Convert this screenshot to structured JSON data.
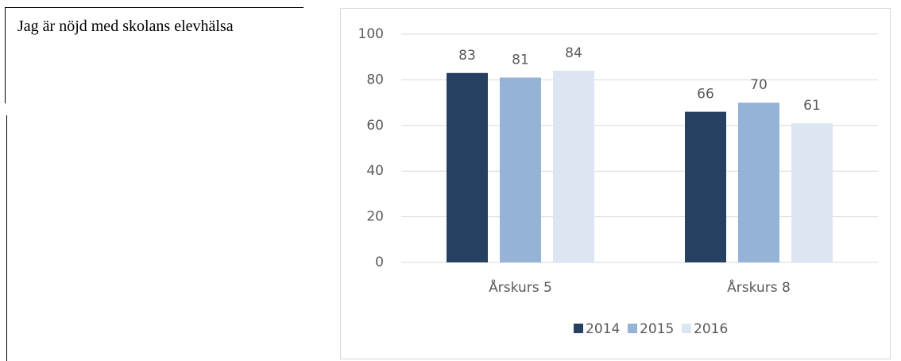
{
  "side_text": "Jag är nöjd med skolans elevhälsa",
  "chart_data": {
    "type": "bar",
    "categories": [
      "Årskurs 5",
      "Årskurs 8"
    ],
    "series": [
      {
        "name": "2014",
        "color": "#264061",
        "values": [
          83,
          66
        ]
      },
      {
        "name": "2015",
        "color": "#95b3d7",
        "values": [
          81,
          70
        ]
      },
      {
        "name": "2016",
        "color": "#dce6f2",
        "values": [
          84,
          61
        ]
      }
    ],
    "ylim": [
      0,
      100
    ],
    "yticks": [
      0,
      20,
      40,
      60,
      80,
      100
    ],
    "grid": true,
    "legend": "bottom"
  }
}
